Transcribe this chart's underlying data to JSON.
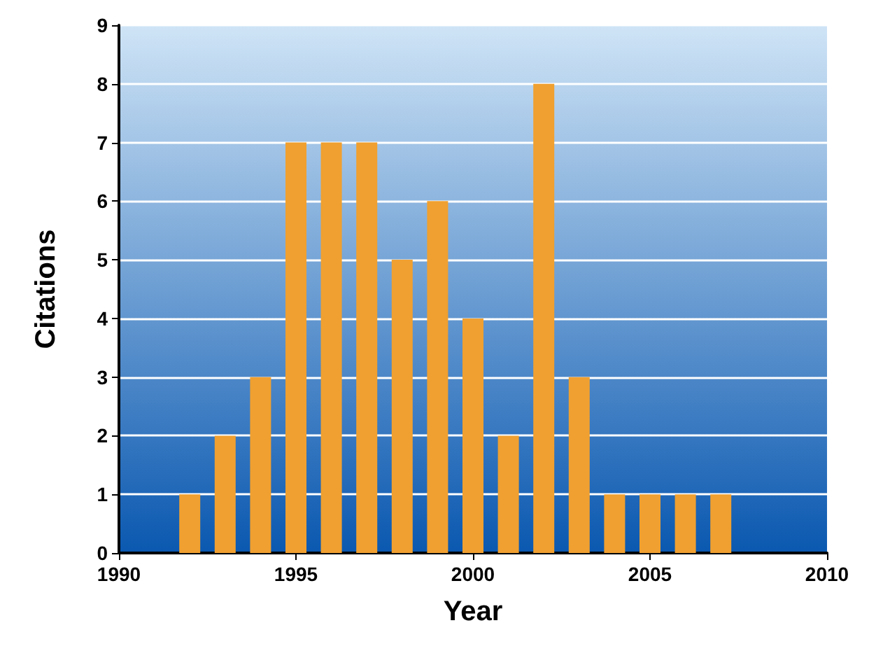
{
  "chart_data": {
    "type": "bar",
    "xlabel": "Year",
    "ylabel": "Citations",
    "x": [
      1992,
      1993,
      1994,
      1995,
      1996,
      1997,
      1998,
      1999,
      2000,
      2001,
      2002,
      2003,
      2004,
      2005,
      2006,
      2007
    ],
    "values": [
      1,
      2,
      3,
      7,
      7,
      7,
      5,
      6,
      4,
      2,
      8,
      3,
      1,
      1,
      1,
      1
    ],
    "color": "#f0a030",
    "xlim": [
      1990,
      2010
    ],
    "xticks": [
      1990,
      1995,
      2000,
      2005,
      2010
    ],
    "ylim": [
      0,
      9
    ],
    "yticks": [
      0,
      1,
      2,
      3,
      4,
      5,
      6,
      7,
      8,
      9
    ],
    "grid": "y"
  }
}
